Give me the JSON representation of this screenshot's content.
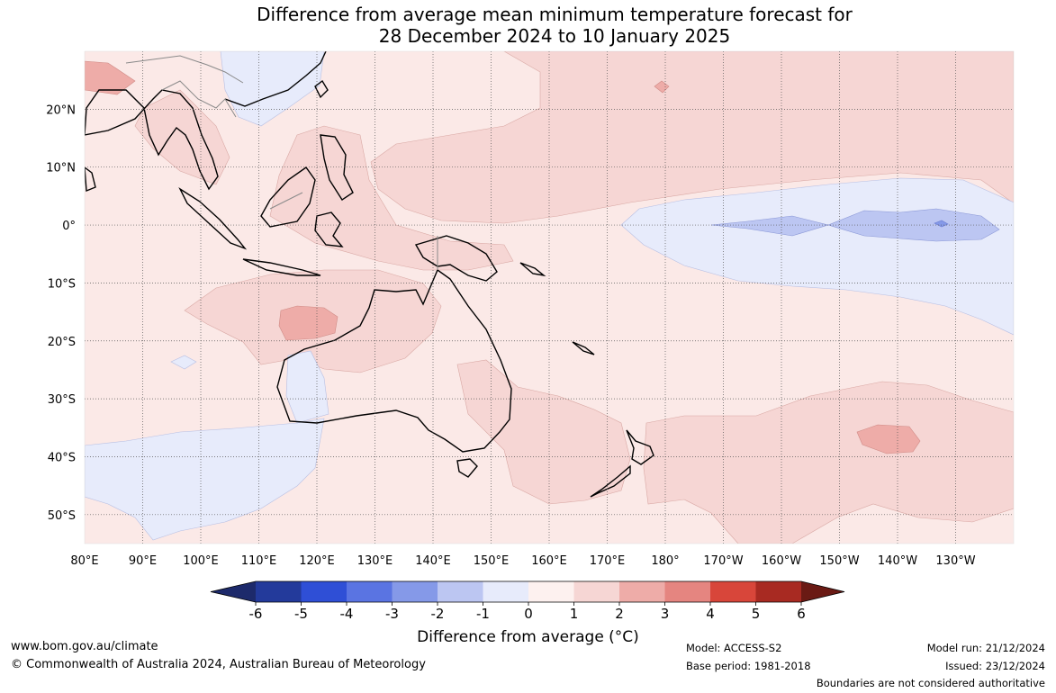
{
  "title": {
    "line1": "Difference from average mean minimum temperature forecast for",
    "line2": "28 December 2024 to 10 January 2025"
  },
  "map": {
    "lon_range": [
      80,
      240
    ],
    "lat_range": [
      -55,
      30
    ],
    "lon_ticks": [
      {
        "lon": 80,
        "label": "80°E"
      },
      {
        "lon": 90,
        "label": "90°E"
      },
      {
        "lon": 100,
        "label": "100°E"
      },
      {
        "lon": 110,
        "label": "110°E"
      },
      {
        "lon": 120,
        "label": "120°E"
      },
      {
        "lon": 130,
        "label": "130°E"
      },
      {
        "lon": 140,
        "label": "140°E"
      },
      {
        "lon": 150,
        "label": "150°E"
      },
      {
        "lon": 160,
        "label": "160°E"
      },
      {
        "lon": 170,
        "label": "170°E"
      },
      {
        "lon": 180,
        "label": "180°"
      },
      {
        "lon": 190,
        "label": "170°W"
      },
      {
        "lon": 200,
        "label": "160°W"
      },
      {
        "lon": 210,
        "label": "150°W"
      },
      {
        "lon": 220,
        "label": "140°W"
      },
      {
        "lon": 230,
        "label": "130°W"
      }
    ],
    "lat_ticks": [
      {
        "lat": 20,
        "label": "20°N"
      },
      {
        "lat": 10,
        "label": "10°N"
      },
      {
        "lat": 0,
        "label": "0°"
      },
      {
        "lat": -10,
        "label": "10°S"
      },
      {
        "lat": -20,
        "label": "20°S"
      },
      {
        "lat": -30,
        "label": "30°S"
      },
      {
        "lat": -40,
        "label": "40°S"
      },
      {
        "lat": -50,
        "label": "50°S"
      }
    ],
    "grid": true,
    "base_color": "#fbe9e7"
  },
  "colorbar": {
    "ticks": [
      "-6",
      "-5",
      "-4",
      "-3",
      "-2",
      "-1",
      "0",
      "1",
      "2",
      "3",
      "4",
      "5",
      "6"
    ],
    "colors": [
      "#233a9b",
      "#2f4fd6",
      "#5a74e2",
      "#8599e8",
      "#bcc6f2",
      "#e7ebfb",
      "#fdf1ef",
      "#f6d6d4",
      "#eeaca8",
      "#e58580",
      "#d8463a",
      "#a82a22"
    ],
    "under_color": "#1d2a6b",
    "over_color": "#6a1a14",
    "label": "Difference from average (°C)"
  },
  "footer": {
    "url": "www.bom.gov.au/climate",
    "copyright": "© Commonwealth of Australia 2024, Australian Bureau of Meteorology",
    "model": "Model: ACCESS-S2",
    "base_period": "Base period: 1981-2018",
    "model_run": "Model run: 21/12/2024",
    "issued": "Issued: 23/12/2024",
    "disclaimer": "Boundaries are not considered authoritative"
  }
}
